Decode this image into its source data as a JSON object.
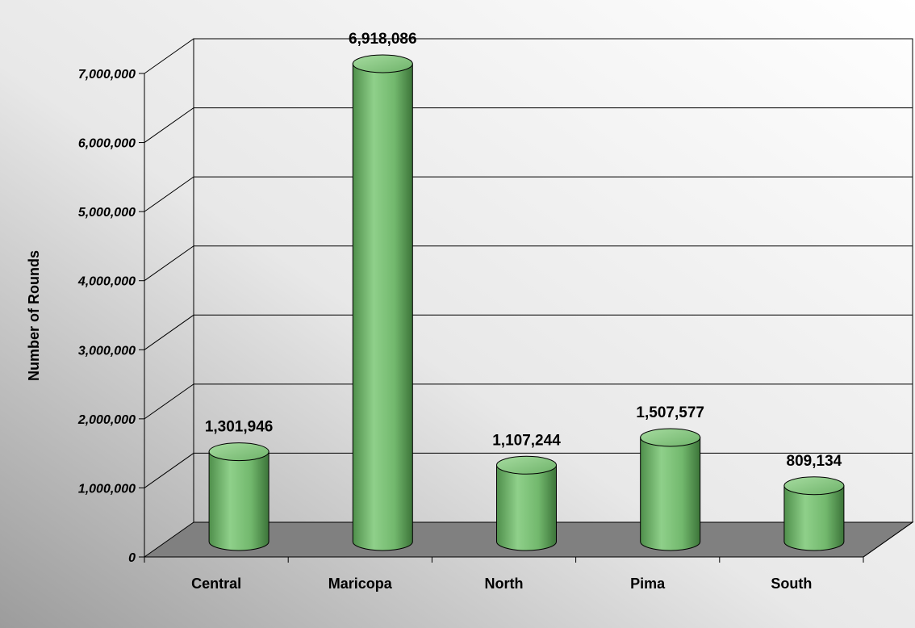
{
  "chart_data": {
    "type": "bar",
    "style": "3d-cylinder",
    "categories": [
      "Central",
      "Maricopa",
      "North",
      "Pima",
      "South"
    ],
    "values": [
      1301946,
      6918086,
      1107244,
      1507577,
      809134
    ],
    "data_labels": [
      "1,301,946",
      "6,918,086",
      "1,107,244",
      "1,507,577",
      "809,134"
    ],
    "ylabel": "Number of Rounds",
    "xlabel": "",
    "ylim": [
      0,
      7000000
    ],
    "yticks": [
      0,
      1000000,
      2000000,
      3000000,
      4000000,
      5000000,
      6000000,
      7000000
    ],
    "ytick_labels": [
      "0",
      "1,000,000",
      "2,000,000",
      "3,000,000",
      "4,000,000",
      "5,000,000",
      "6,000,000",
      "7,000,000"
    ],
    "grid": true,
    "legend": "none"
  },
  "colors": {
    "bar_fill": "#7fc47a",
    "bar_dark": "#3f7a3c",
    "floor": "#808080",
    "background_light": "#ffffff",
    "background_dark": "#a6a6a6"
  }
}
